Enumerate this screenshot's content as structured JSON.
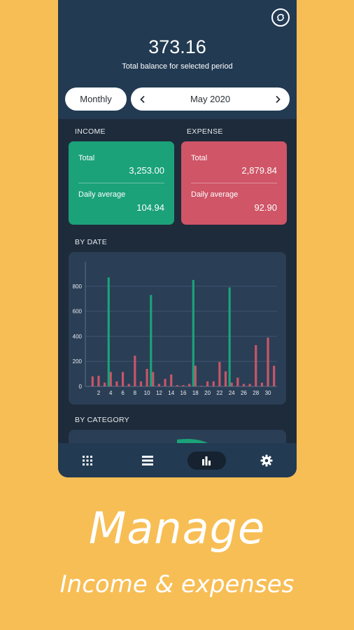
{
  "header": {
    "balance": "373.16",
    "balance_label": "Total balance for selected period"
  },
  "period": {
    "mode": "Monthly",
    "month": "May 2020"
  },
  "income": {
    "title": "INCOME",
    "total_label": "Total",
    "total_value": "3,253.00",
    "avg_label": "Daily average",
    "avg_value": "104.94",
    "color": "#1BA279"
  },
  "expense": {
    "title": "EXPENSE",
    "total_label": "Total",
    "total_value": "2,879.84",
    "avg_label": "Daily average",
    "avg_value": "92.90",
    "color": "#CF5567"
  },
  "by_date_title": "BY DATE",
  "by_category_title": "BY CATEGORY",
  "nav": {
    "items": [
      {
        "icon": "grid-icon"
      },
      {
        "icon": "list-icon"
      },
      {
        "icon": "bar-chart-icon",
        "active": true
      },
      {
        "icon": "gear-icon"
      }
    ]
  },
  "promo": {
    "headline": "Manage",
    "subline": "Income & expenses"
  },
  "chart_data": {
    "type": "bar",
    "ylim": [
      0,
      950
    ],
    "yticks": [
      0,
      200,
      400,
      600,
      800
    ],
    "xticks": [
      2,
      4,
      6,
      8,
      10,
      12,
      14,
      16,
      18,
      20,
      22,
      24,
      26,
      28,
      30
    ],
    "days": [
      1,
      2,
      3,
      4,
      5,
      6,
      7,
      8,
      9,
      10,
      11,
      12,
      13,
      14,
      15,
      16,
      17,
      18,
      19,
      20,
      21,
      22,
      23,
      24,
      25,
      26,
      27,
      28,
      29,
      30,
      31
    ],
    "series": [
      {
        "color": "#C85668",
        "values": [
          80,
          85,
          30,
          115,
          40,
          115,
          20,
          245,
          40,
          140,
          115,
          20,
          60,
          95,
          10,
          10,
          20,
          165,
          5,
          40,
          40,
          195,
          120,
          30,
          70,
          20,
          20,
          330,
          30,
          390,
          165
        ]
      },
      {
        "color": "#1BA279",
        "values": [
          0,
          0,
          0,
          870,
          0,
          0,
          0,
          0,
          0,
          0,
          730,
          0,
          0,
          0,
          0,
          0,
          0,
          850,
          0,
          0,
          0,
          0,
          0,
          790,
          0,
          0,
          0,
          0,
          0,
          0,
          0
        ]
      }
    ]
  }
}
